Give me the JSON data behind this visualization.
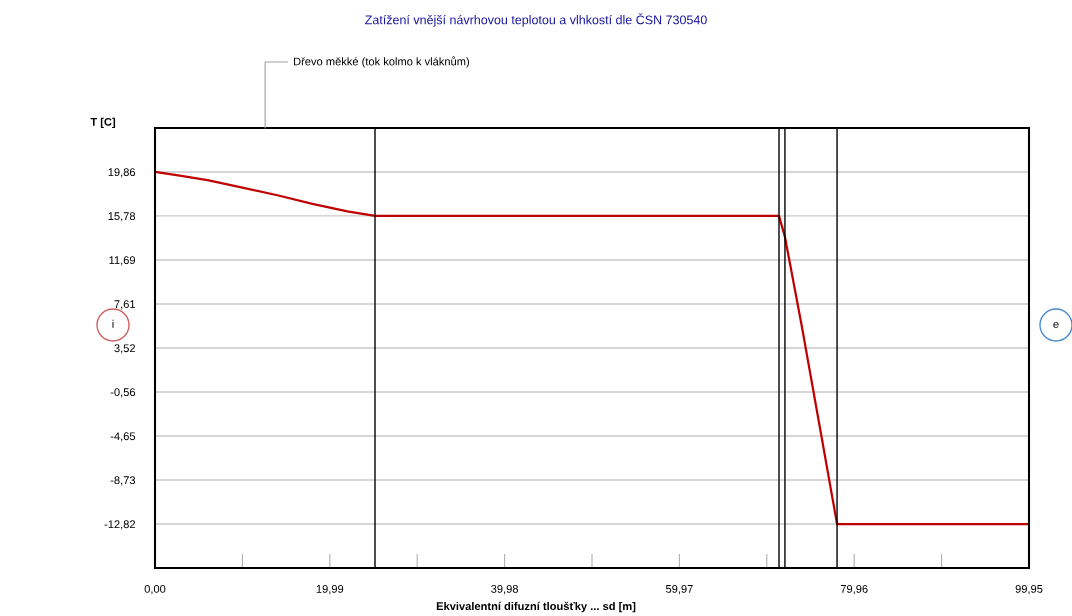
{
  "chart_data": {
    "type": "line",
    "title": "Zatížení vnější návrhovou teplotou a vlhkostí dle ČSN 730540",
    "xlabel": "Ekvivalentní difuzní tloušťky ... sd [m]",
    "ylabel": "T [C]",
    "series": [
      {
        "color": "#c00000",
        "x": [
          0,
          3,
          6,
          10,
          14,
          18,
          22,
          25.16,
          71.36,
          72.04,
          74,
          76,
          78.0,
          99.95
        ],
        "values": [
          19.86,
          19.5,
          19.1,
          18.4,
          17.7,
          16.9,
          16.2,
          15.78,
          15.78,
          13.83,
          5.4,
          -3.7,
          -12.82,
          -12.82
        ]
      }
    ],
    "xlim": [
      0,
      99.95
    ],
    "xticks": [
      {
        "value": 0,
        "label": "0,00"
      },
      {
        "value": 9.995,
        "label": null
      },
      {
        "value": 19.99,
        "label": "19,99"
      },
      {
        "value": 29.985,
        "label": null
      },
      {
        "value": 39.98,
        "label": "39,98"
      },
      {
        "value": 49.975,
        "label": null
      },
      {
        "value": 59.97,
        "label": "59,97"
      },
      {
        "value": 69.965,
        "label": null
      },
      {
        "value": 79.96,
        "label": "79,96"
      },
      {
        "value": 89.955,
        "label": null
      },
      {
        "value": 99.95,
        "label": "99,95"
      }
    ],
    "ylim": [
      -16.9,
      23.94
    ],
    "yticks": [
      {
        "value": -12.82,
        "label": "-12,82"
      },
      {
        "value": -8.73,
        "label": "-8,73"
      },
      {
        "value": -4.65,
        "label": "-4,65"
      },
      {
        "value": -0.56,
        "label": "-0,56"
      },
      {
        "value": 3.52,
        "label": "3,52"
      },
      {
        "value": 7.61,
        "label": "7,61"
      },
      {
        "value": 11.69,
        "label": "11,69"
      },
      {
        "value": 15.78,
        "label": "15,78"
      },
      {
        "value": 19.86,
        "label": "19,86"
      }
    ],
    "grid": "y",
    "ref_lines": [
      {
        "axis": "x",
        "value": 25.16,
        "color": "#000000"
      },
      {
        "axis": "x",
        "value": 71.36,
        "color": "#000000"
      },
      {
        "axis": "x",
        "value": 72.04,
        "color": "#000000"
      },
      {
        "axis": "x",
        "value": 78.0,
        "color": "#000000"
      }
    ],
    "annotations": [
      "Dřevo měkké (tok kolmo k vláknům)",
      "i",
      "e"
    ]
  }
}
